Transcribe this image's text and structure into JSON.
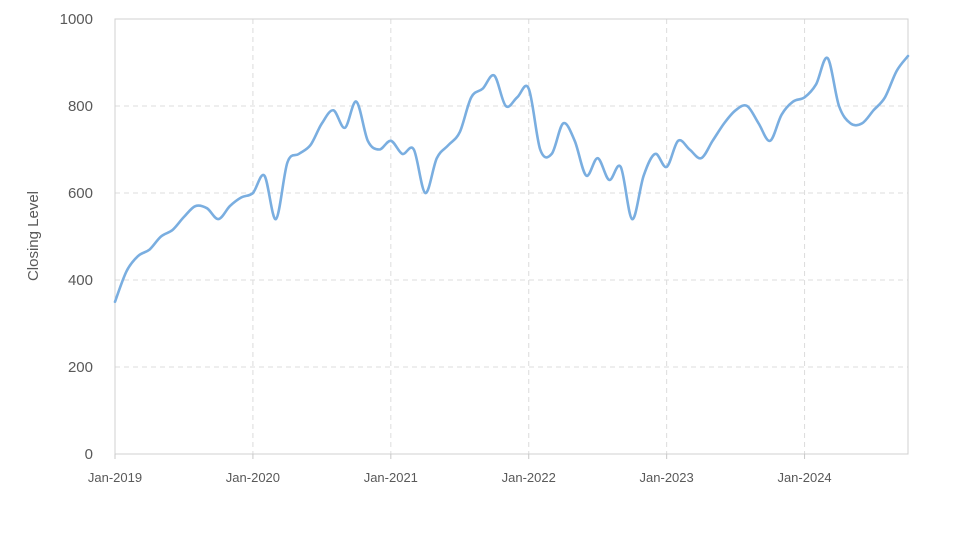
{
  "chart_data": {
    "type": "line",
    "title": "",
    "xlabel": "",
    "ylabel": "Closing Level",
    "ylim": [
      0,
      1000
    ],
    "xlim": [
      "2019-01",
      "2024-10"
    ],
    "grid": true,
    "legend": "none",
    "line_color": "#7aaee0",
    "y_ticks": [
      0,
      200,
      400,
      600,
      800,
      1000
    ],
    "x_ticks": [
      {
        "value": "2019-01",
        "label": "Jan-2019"
      },
      {
        "value": "2020-01",
        "label": "Jan-2020"
      },
      {
        "value": "2021-01",
        "label": "Jan-2021"
      },
      {
        "value": "2022-01",
        "label": "Jan-2022"
      },
      {
        "value": "2023-01",
        "label": "Jan-2023"
      },
      {
        "value": "2024-01",
        "label": "Jan-2024"
      }
    ],
    "series": [
      {
        "x": [
          "2019-01",
          "2019-02",
          "2019-03",
          "2019-04",
          "2019-05",
          "2019-06",
          "2019-07",
          "2019-08",
          "2019-09",
          "2019-10",
          "2019-11",
          "2019-12",
          "2020-01",
          "2020-02",
          "2020-03",
          "2020-04",
          "2020-05",
          "2020-06",
          "2020-07",
          "2020-08",
          "2020-09",
          "2020-10",
          "2020-11",
          "2020-12",
          "2021-01",
          "2021-02",
          "2021-03",
          "2021-04",
          "2021-05",
          "2021-06",
          "2021-07",
          "2021-08",
          "2021-09",
          "2021-10",
          "2021-11",
          "2021-12",
          "2022-01",
          "2022-02",
          "2022-03",
          "2022-04",
          "2022-05",
          "2022-06",
          "2022-07",
          "2022-08",
          "2022-09",
          "2022-10",
          "2022-11",
          "2022-12",
          "2023-01",
          "2023-02",
          "2023-03",
          "2023-04",
          "2023-05",
          "2023-06",
          "2023-07",
          "2023-08",
          "2023-09",
          "2023-10",
          "2023-11",
          "2023-12",
          "2024-01",
          "2024-02",
          "2024-03",
          "2024-04",
          "2024-05",
          "2024-06",
          "2024-07",
          "2024-08",
          "2024-09",
          "2024-10"
        ],
        "y": [
          350,
          420,
          455,
          470,
          500,
          515,
          545,
          570,
          565,
          540,
          570,
          590,
          600,
          640,
          540,
          670,
          690,
          710,
          760,
          790,
          750,
          810,
          720,
          700,
          720,
          690,
          700,
          600,
          680,
          710,
          740,
          820,
          840,
          870,
          800,
          820,
          840,
          700,
          690,
          760,
          720,
          640,
          680,
          630,
          660,
          540,
          640,
          690,
          660,
          720,
          700,
          680,
          720,
          760,
          790,
          800,
          760,
          720,
          780,
          810,
          820,
          850,
          910,
          800,
          760,
          760,
          790,
          820,
          880,
          915
        ]
      }
    ]
  }
}
